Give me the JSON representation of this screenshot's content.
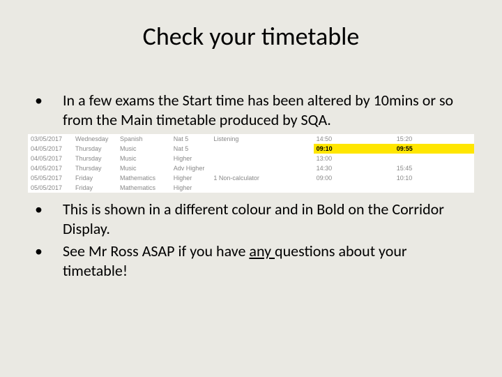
{
  "title": "Check your timetable",
  "bullets": {
    "b1": "In a few exams the Start time has been altered by 10mins or so from the Main timetable produced by SQA.",
    "b2": "This is shown in a different colour and in Bold on the Corridor Display.",
    "b3_prefix": "See Mr Ross ASAP if you have ",
    "b3_underline": "any ",
    "b3_suffix": "questions about your timetable!"
  },
  "timetable": {
    "header_comp": "...",
    "rows": [
      {
        "date": "03/05/2017",
        "day": "Wednesday",
        "subject": "Spanish",
        "level": "Nat 5",
        "component": "Listening",
        "start": "14:50",
        "end": "15:20",
        "highlight": false
      },
      {
        "date": "04/05/2017",
        "day": "Thursday",
        "subject": "Music",
        "level": "Nat 5",
        "component": "",
        "start": "09:10",
        "end": "09:55",
        "highlight": true
      },
      {
        "date": "04/05/2017",
        "day": "Thursday",
        "subject": "Music",
        "level": "Higher",
        "component": "",
        "start": "13:00",
        "end": "",
        "highlight": false
      },
      {
        "date": "04/05/2017",
        "day": "Thursday",
        "subject": "Music",
        "level": "Adv Higher",
        "component": "",
        "start": "14:30",
        "end": "15:45",
        "highlight": false
      },
      {
        "date": "05/05/2017",
        "day": "Friday",
        "subject": "Mathematics",
        "level": "Higher",
        "component": "1 Non-calculator",
        "start": "09:00",
        "end": "10:10",
        "highlight": false
      },
      {
        "date": "05/05/2017",
        "day": "Friday",
        "subject": "Mathematics",
        "level": "Higher",
        "component": "",
        "start": "",
        "end": "",
        "highlight": false
      }
    ],
    "colors": {
      "highlight_bg": "#ffe600",
      "cell_text": "#888888",
      "bg": "#ffffff"
    }
  },
  "slide_bg": "#eae9e3"
}
